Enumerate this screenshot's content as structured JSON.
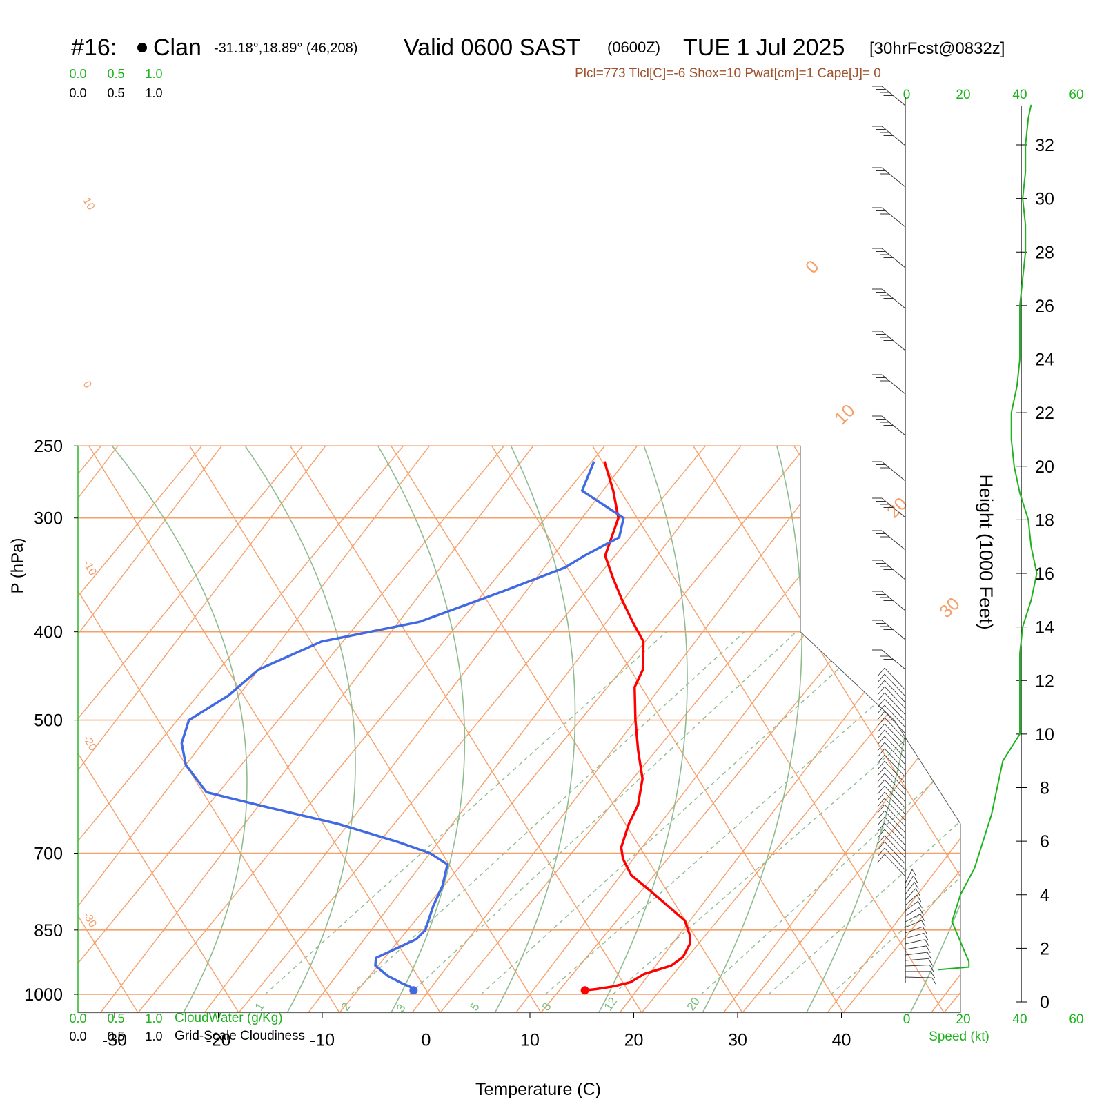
{
  "header": {
    "station_id": "#16:",
    "station_name": "Clan",
    "coords": "-31.18°,18.89° (46,208)",
    "valid": "Valid 0600 SAST",
    "zulu": "(0600Z)",
    "date": "TUE 1 Jul 2025",
    "forecast": "[30hrFcst@0832z]"
  },
  "indices": "Plcl=773 Tlcl[C]=-6 Shox=10 Pwat[cm]=1 Cape[J]= 0",
  "cloud_scale": {
    "green_ticks": [
      "0.0",
      "0.5",
      "1.0"
    ],
    "black_ticks": [
      "0.0",
      "0.5",
      "1.0"
    ],
    "cloudwater_label": "CloudWater (g/Kg)",
    "cloudiness_label": "Grid-Scale Cloudiness"
  },
  "colors": {
    "temperature": "#ff0000",
    "dewpoint": "#4169e1",
    "isotherm": "#f5a06a",
    "dry_adiabat": "#8fbc8f",
    "mixing_ratio": "#8fbc8f",
    "wind_speed": "#1db31d",
    "indices": "#a0522d"
  },
  "chart_data": [
    {
      "type": "line",
      "title": "Skew-T log-P",
      "xlabel": "Temperature (C)",
      "ylabel": "P (hPa)",
      "ylabel_right": "Height (1000 Feet)",
      "x_ticks": [
        -30,
        -20,
        -10,
        0,
        10,
        20,
        30,
        40
      ],
      "y_ticks": [
        250,
        300,
        400,
        500,
        700,
        850,
        1000
      ],
      "height_ticks": [
        0,
        2,
        4,
        6,
        8,
        10,
        12,
        14,
        16,
        18,
        20,
        22,
        24,
        26,
        28,
        30,
        32
      ],
      "xlim": [
        -34,
        36
      ],
      "ylim": [
        1030,
        250
      ],
      "y_scale": "log",
      "isotherm_labels": [
        "10",
        "0",
        "-10",
        "-20",
        "-30",
        "0",
        "10",
        "20",
        "30"
      ],
      "mixing_ratio_labels": [
        "1",
        "2",
        "3",
        "5",
        "8",
        "12",
        "20"
      ],
      "series": [
        {
          "name": "Temperature",
          "points": [
            [
              15,
              990
            ],
            [
              16,
              987
            ],
            [
              17.5,
              980
            ],
            [
              18.8,
              970
            ],
            [
              19.5,
              950
            ],
            [
              21.5,
              930
            ],
            [
              22,
              910
            ],
            [
              21.7,
              880
            ],
            [
              21,
              860
            ],
            [
              19.5,
              830
            ],
            [
              16.8,
              800
            ],
            [
              14,
              770
            ],
            [
              11,
              740
            ],
            [
              9,
              710
            ],
            [
              8,
              690
            ],
            [
              7.5,
              670
            ],
            [
              7,
              650
            ],
            [
              6.5,
              620
            ],
            [
              5,
              580
            ],
            [
              2.5,
              540
            ],
            [
              0,
              500
            ],
            [
              -2.5,
              460
            ],
            [
              -3,
              440
            ],
            [
              -5,
              410
            ],
            [
              -7.5,
              390
            ],
            [
              -10,
              370
            ],
            [
              -12.5,
              350
            ],
            [
              -15,
              330
            ],
            [
              -16.5,
              300
            ],
            [
              -19,
              280
            ],
            [
              -22,
              260
            ]
          ]
        },
        {
          "name": "Dewpoint",
          "points": [
            [
              -1.5,
              990
            ],
            [
              -2,
              982
            ],
            [
              -3.2,
              972
            ],
            [
              -5,
              955
            ],
            [
              -7,
              930
            ],
            [
              -7.5,
              912
            ],
            [
              -6.5,
              895
            ],
            [
              -5,
              870
            ],
            [
              -4.8,
              850
            ],
            [
              -5.8,
              800
            ],
            [
              -6.4,
              760
            ],
            [
              -7.5,
              720
            ],
            [
              -10,
              700
            ],
            [
              -14,
              680
            ],
            [
              -21,
              650
            ],
            [
              -30,
              620
            ],
            [
              -36,
              600
            ],
            [
              -40,
              560
            ],
            [
              -42,
              530
            ],
            [
              -43,
              500
            ],
            [
              -41,
              470
            ],
            [
              -40,
              440
            ],
            [
              -36,
              410
            ],
            [
              -28,
              390
            ],
            [
              -22,
              360
            ],
            [
              -18,
              340
            ],
            [
              -17,
              330
            ],
            [
              -15,
              315
            ],
            [
              -16,
              300
            ],
            [
              -22,
              280
            ],
            [
              -23,
              260
            ]
          ]
        }
      ],
      "winds": {
        "type": "barbs",
        "speed_axis": {
          "label": "Speed (kt)",
          "ticks": [
            0,
            20,
            40,
            60
          ]
        },
        "speed_profile_kt_by_height_kft": [
          [
            1.2,
            11
          ],
          [
            1.3,
            22
          ],
          [
            1.5,
            22
          ],
          [
            2,
            20
          ],
          [
            3,
            16
          ],
          [
            4,
            19
          ],
          [
            5,
            24
          ],
          [
            6,
            27
          ],
          [
            7,
            30
          ],
          [
            8,
            32
          ],
          [
            9,
            34
          ],
          [
            10,
            40
          ],
          [
            11,
            40
          ],
          [
            12,
            40
          ],
          [
            13,
            40
          ],
          [
            14,
            41
          ],
          [
            15,
            44
          ],
          [
            16,
            46
          ],
          [
            17,
            44
          ],
          [
            18,
            43
          ],
          [
            19,
            40
          ],
          [
            20,
            38
          ],
          [
            21,
            37
          ],
          [
            22,
            37
          ],
          [
            23,
            39
          ],
          [
            24,
            40
          ],
          [
            25,
            40
          ],
          [
            26,
            40
          ],
          [
            27,
            41
          ],
          [
            28,
            42
          ],
          [
            29,
            42
          ],
          [
            30,
            41
          ],
          [
            31,
            42
          ],
          [
            32,
            42
          ],
          [
            33,
            43
          ],
          [
            33.5,
            44
          ]
        ]
      }
    }
  ]
}
